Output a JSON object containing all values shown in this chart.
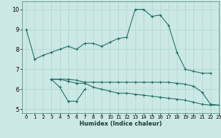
{
  "xlabel": "Humidex (Indice chaleur)",
  "bg_color": "#cce8e4",
  "line_color": "#1a6e64",
  "grid_color": "#b0d8d2",
  "xlim": [
    -0.5,
    23
  ],
  "ylim": [
    4.8,
    10.4
  ],
  "xticks": [
    0,
    1,
    2,
    3,
    4,
    5,
    6,
    7,
    8,
    9,
    10,
    11,
    12,
    13,
    14,
    15,
    16,
    17,
    18,
    19,
    20,
    21,
    22,
    23
  ],
  "yticks": [
    5,
    6,
    7,
    8,
    9,
    10
  ],
  "line1": {
    "x": [
      0,
      1,
      2,
      3,
      4,
      5,
      6,
      7,
      8,
      9,
      10,
      11,
      12,
      13,
      14,
      15,
      16,
      17,
      18,
      19,
      20,
      21,
      22
    ],
    "y": [
      9.0,
      7.5,
      7.7,
      7.85,
      8.0,
      8.15,
      8.0,
      8.3,
      8.3,
      8.15,
      8.35,
      8.55,
      8.6,
      10.0,
      10.0,
      9.65,
      9.72,
      9.2,
      7.85,
      7.0,
      6.9,
      6.8,
      6.8
    ]
  },
  "line2": {
    "x": [
      3,
      4,
      5,
      6,
      7
    ],
    "y": [
      6.5,
      6.1,
      5.4,
      5.4,
      6.0
    ]
  },
  "line3": {
    "x": [
      3,
      4,
      5,
      6,
      7,
      8,
      9,
      10,
      11,
      12,
      13,
      14,
      15,
      16,
      17,
      18,
      19,
      20,
      21,
      22,
      23
    ],
    "y": [
      6.5,
      6.5,
      6.4,
      6.3,
      6.3,
      6.1,
      6.0,
      5.9,
      5.8,
      5.8,
      5.75,
      5.7,
      5.65,
      5.6,
      5.55,
      5.5,
      5.45,
      5.35,
      5.25,
      5.2,
      5.2
    ]
  },
  "line4": {
    "x": [
      3,
      4,
      5,
      6,
      7,
      8,
      9,
      10,
      11,
      12,
      13,
      14,
      15,
      16,
      17,
      18,
      19,
      20,
      21,
      22,
      23
    ],
    "y": [
      6.5,
      6.5,
      6.5,
      6.45,
      6.35,
      6.35,
      6.35,
      6.35,
      6.35,
      6.35,
      6.35,
      6.35,
      6.35,
      6.35,
      6.35,
      6.3,
      6.25,
      6.15,
      5.85,
      5.25,
      5.2
    ]
  }
}
